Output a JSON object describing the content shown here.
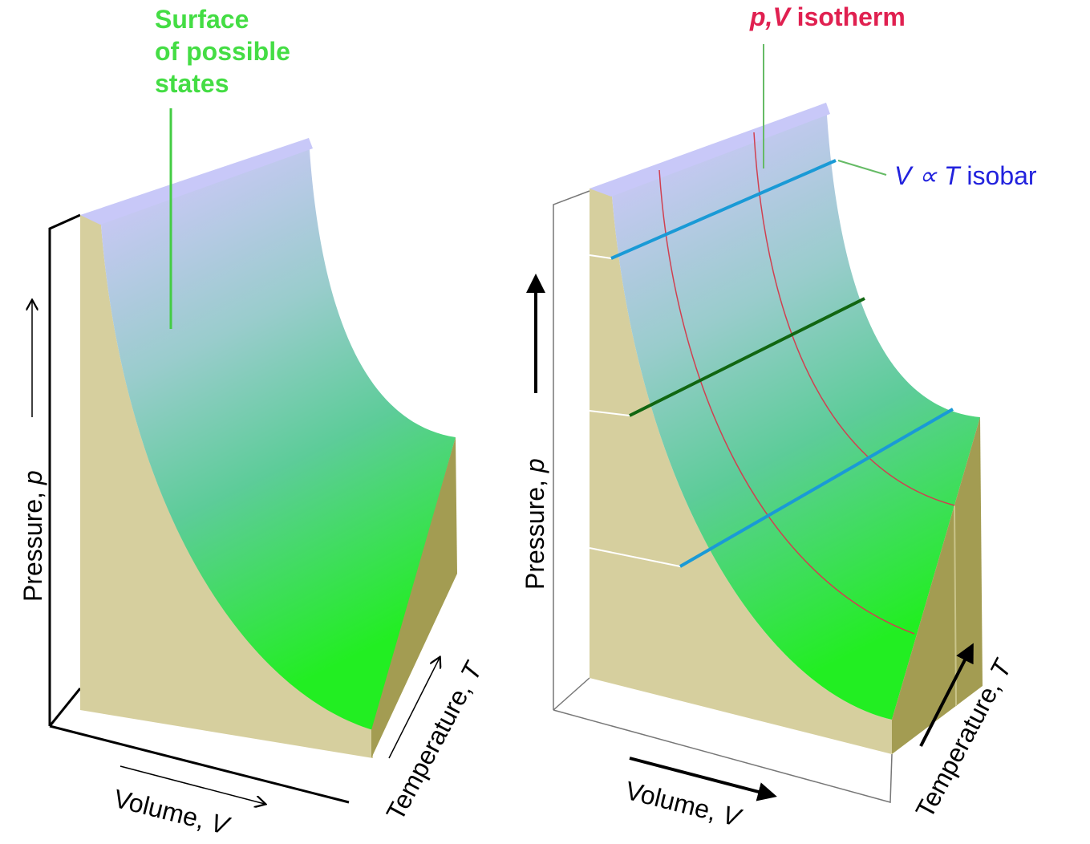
{
  "left_panel": {
    "annotation": {
      "lines": [
        "Surface",
        "of possible",
        "states"
      ]
    },
    "axes": {
      "pressure": {
        "name": "Pressure,",
        "symbol": "p"
      },
      "volume": {
        "name": "Volume,",
        "symbol": "V"
      },
      "temperature": {
        "name": "Temperature,",
        "symbol": "T"
      }
    }
  },
  "right_panel": {
    "isotherm": {
      "symbols": "p,V",
      "text": "isotherm"
    },
    "isobar": {
      "symbols": "V ∝ T",
      "text": "isobar"
    },
    "axes": {
      "pressure": {
        "name": "Pressure,",
        "symbol": "p"
      },
      "volume": {
        "name": "Volume,",
        "symbol": "V"
      },
      "temperature": {
        "name": "Temperature,",
        "symbol": "T"
      }
    }
  }
}
